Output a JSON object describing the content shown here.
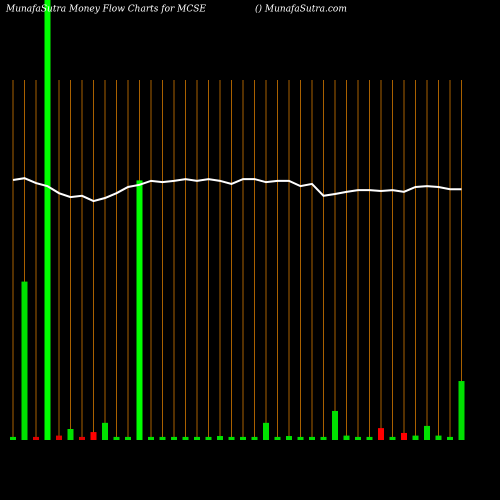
{
  "chart_data": {
    "type": "bar",
    "title": "MunafaSutra  Money Flow  Charts for MCSE",
    "subtitle": "() MunafaSutra.com",
    "ylim": [
      0,
      100
    ],
    "grid": true,
    "grid_color": "#a86000",
    "background": "#000000",
    "series": [
      {
        "type": "bar",
        "values": [
          0.7,
          36,
          0.7,
          105,
          1,
          2.5,
          0.7,
          1.8,
          3.9,
          0.7,
          0.7,
          59,
          0.7,
          0.7,
          0.7,
          0.7,
          0.7,
          0.7,
          0.9,
          0.7,
          0.7,
          0.7,
          3.9,
          0.7,
          0.9,
          0.7,
          0.7,
          0.7,
          6.6,
          1,
          0.7,
          0.7,
          2.7,
          0.7,
          1.6,
          1,
          3.2,
          1,
          0.7,
          13.4
        ],
        "colors": [
          "#00e000",
          "#00e000",
          "#e00000",
          "#00ff00",
          "#e00000",
          "#00e000",
          "#e00000",
          "#ff0000",
          "#00e000",
          "#00e000",
          "#00e000",
          "#00ff00",
          "#00e000",
          "#00e000",
          "#00e000",
          "#00e000",
          "#00e000",
          "#00e000",
          "#00e000",
          "#00e000",
          "#00e000",
          "#00e000",
          "#00e000",
          "#00e000",
          "#00e000",
          "#00e000",
          "#00e000",
          "#00e000",
          "#00e000",
          "#00e000",
          "#00e000",
          "#00e000",
          "#ff0000",
          "#00e000",
          "#ff0000",
          "#00e000",
          "#00e000",
          "#00e000",
          "#00e000",
          "#00e000"
        ]
      },
      {
        "type": "line",
        "color": "#ffffff",
        "values": [
          59.1,
          59.5,
          58.4,
          57.7,
          56.1,
          55.2,
          55.5,
          54.3,
          55,
          56.1,
          57.5,
          58,
          58.9,
          58.6,
          58.9,
          59.3,
          58.9,
          59.3,
          58.9,
          58.2,
          59.3,
          59.3,
          58.6,
          58.9,
          58.9,
          57.7,
          58.2,
          55.5,
          55.9,
          56.4,
          56.8,
          56.8,
          56.6,
          56.8,
          56.4,
          57.5,
          57.7,
          57.5,
          57,
          57
        ]
      }
    ]
  }
}
